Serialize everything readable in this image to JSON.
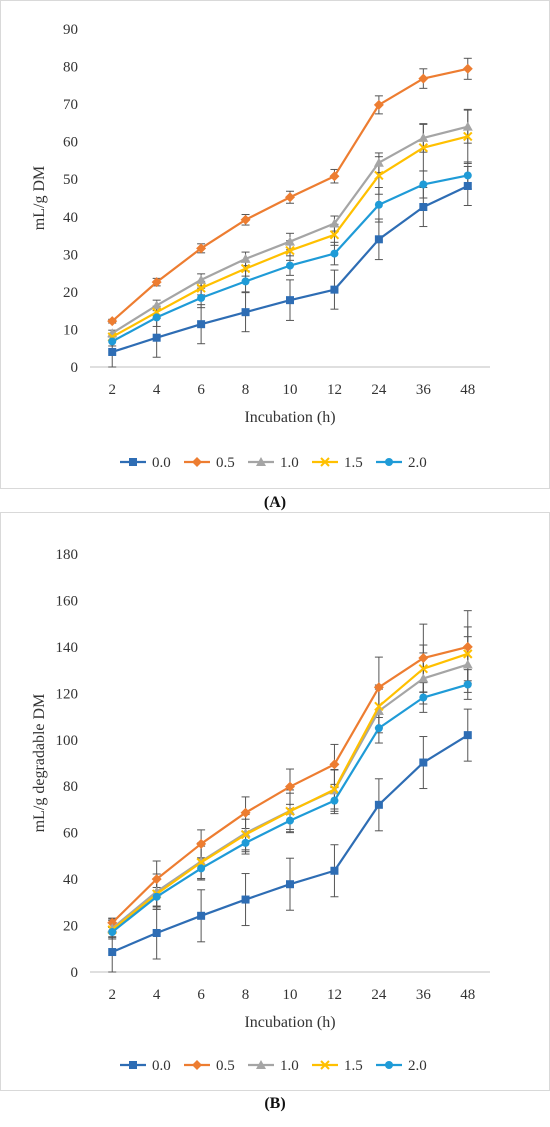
{
  "charts": [
    {
      "caption": "(A)",
      "chart_data": {
        "type": "line",
        "ylabel": "mL/g DM",
        "xlabel": "Incubation (h)",
        "categories": [
          "2",
          "4",
          "6",
          "8",
          "10",
          "12",
          "24",
          "36",
          "48"
        ],
        "ylim": [
          0,
          90
        ],
        "yticks": [
          0,
          10,
          20,
          30,
          40,
          50,
          60,
          70,
          80,
          90
        ],
        "grid": false,
        "legend": "bottom",
        "series": [
          {
            "name": "0.0",
            "color": "#2e6db4",
            "marker": "square",
            "values": [
              4.0,
              7.8,
              11.4,
              14.6,
              17.8,
              20.6,
              34.0,
              42.6,
              48.2
            ],
            "errors": [
              4.0,
              5.2,
              5.2,
              5.2,
              5.4,
              5.2,
              5.4,
              5.2,
              5.2
            ]
          },
          {
            "name": "0.5",
            "color": "#ed7d31",
            "marker": "diamond",
            "values": [
              12.2,
              22.6,
              31.6,
              39.2,
              45.2,
              50.8,
              69.8,
              76.8,
              79.4
            ],
            "errors": [
              0.5,
              1.0,
              1.2,
              1.4,
              1.6,
              1.8,
              2.4,
              2.6,
              2.8
            ]
          },
          {
            "name": "1.0",
            "color": "#a5a5a5",
            "marker": "triangle",
            "values": [
              9.0,
              16.4,
              23.2,
              28.8,
              33.4,
              38.2,
              54.4,
              61.0,
              64.0
            ],
            "errors": [
              0.8,
              1.4,
              1.6,
              1.8,
              2.2,
              2.0,
              2.6,
              3.8,
              4.4
            ]
          },
          {
            "name": "1.5",
            "color": "#ffc000",
            "marker": "x",
            "values": [
              8.0,
              14.6,
              21.0,
              26.2,
              31.0,
              35.2,
              51.0,
              58.4,
              61.4
            ],
            "errors": [
              1.0,
              1.6,
              1.8,
              2.0,
              2.6,
              2.8,
              5.0,
              6.2,
              7.2
            ]
          },
          {
            "name": "2.0",
            "color": "#1f9bd7",
            "marker": "circle",
            "values": [
              6.8,
              13.2,
              18.4,
              22.8,
              27.0,
              30.2,
              43.2,
              48.6,
              51.0
            ],
            "errors": [
              1.2,
              2.4,
              2.6,
              2.8,
              2.6,
              3.0,
              4.6,
              3.6,
              3.6
            ]
          }
        ]
      }
    },
    {
      "caption": "(B)",
      "chart_data": {
        "type": "line",
        "ylabel": "mL/g degradable DM",
        "xlabel": "Incubation (h)",
        "categories": [
          "2",
          "4",
          "6",
          "8",
          "10",
          "12",
          "24",
          "36",
          "48"
        ],
        "ylim": [
          0,
          180
        ],
        "yticks": [
          0,
          20,
          40,
          60,
          80,
          100,
          120,
          140,
          160,
          180
        ],
        "grid": false,
        "legend": "bottom",
        "series": [
          {
            "name": "0.0",
            "color": "#2e6db4",
            "marker": "square",
            "values": [
              8.6,
              16.8,
              24.2,
              31.2,
              37.8,
              43.6,
              72.0,
              90.2,
              102.0
            ],
            "errors": [
              8.6,
              11.2,
              11.2,
              11.2,
              11.2,
              11.2,
              11.2,
              11.2,
              11.2
            ]
          },
          {
            "name": "0.5",
            "color": "#ed7d31",
            "marker": "diamond",
            "values": [
              21.2,
              40.0,
              55.2,
              68.6,
              79.8,
              89.4,
              122.6,
              135.2,
              140.0
            ],
            "errors": [
              2.0,
              7.8,
              6.0,
              6.8,
              7.6,
              8.6,
              13.0,
              14.6,
              15.6
            ]
          },
          {
            "name": "1.0",
            "color": "#a5a5a5",
            "marker": "triangle",
            "values": [
              18.8,
              34.6,
              47.6,
              59.8,
              69.4,
              78.2,
              112.4,
              126.4,
              132.4
            ],
            "errors": [
              4.0,
              7.6,
              8.0,
              8.0,
              9.0,
              9.0,
              9.4,
              11.0,
              12.0
            ]
          },
          {
            "name": "1.5",
            "color": "#ffc000",
            "marker": "x",
            "values": [
              18.2,
              33.6,
              47.2,
              59.2,
              69.2,
              78.6,
              114.4,
              130.6,
              137.0
            ],
            "errors": [
              4.0,
              6.6,
              7.0,
              6.6,
              7.8,
              8.4,
              9.2,
              10.2,
              11.6
            ]
          },
          {
            "name": "2.0",
            "color": "#1f9bd7",
            "marker": "circle",
            "values": [
              17.2,
              32.4,
              44.6,
              55.6,
              65.2,
              73.8,
              105.0,
              118.2,
              123.8
            ],
            "errors": [
              2.0,
              4.0,
              4.4,
              4.8,
              5.2,
              5.6,
              6.4,
              6.4,
              6.4
            ]
          }
        ]
      }
    }
  ]
}
